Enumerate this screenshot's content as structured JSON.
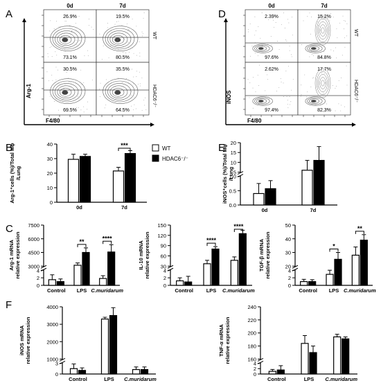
{
  "panels": {
    "A": "A",
    "B": "B",
    "C": "C",
    "D": "D",
    "E": "E",
    "F": "F"
  },
  "flow_A": {
    "col_labels": [
      "0d",
      "7d"
    ],
    "row_labels": [
      "WT",
      "HDAC6⁻/⁻"
    ],
    "y_axis": "Arg-1",
    "x_axis": "F4/80",
    "upper_values": [
      [
        "26.9%",
        "19.5%"
      ],
      [
        "30.5%",
        "35.5%"
      ]
    ],
    "lower_values": [
      [
        "73.1%",
        "80.5%"
      ],
      [
        "69.5%",
        "64.5%"
      ]
    ]
  },
  "flow_D": {
    "col_labels": [
      "0d",
      "7d"
    ],
    "row_labels": [
      "WT",
      "HDAC6⁻/⁻"
    ],
    "y_axis": "iNOS",
    "x_axis": "F4/80",
    "upper_values": [
      [
        "2.39%",
        "15.2%"
      ],
      [
        "2.62%",
        "17.7%"
      ]
    ],
    "lower_values": [
      [
        "97.6%",
        "84.8%"
      ],
      [
        "97.4%",
        "82.3%"
      ]
    ]
  },
  "legend": {
    "wt": "WT",
    "ko": "HDAC6⁻/⁻"
  },
  "colors": {
    "wt": "#ffffff",
    "ko": "#000000",
    "stroke": "#000000"
  },
  "chart_data": [
    {
      "id": "B",
      "type": "bar",
      "categories": [
        "0d",
        "7d"
      ],
      "series": [
        {
          "name": "WT",
          "values": [
            29.5,
            21.5
          ],
          "errors": [
            3.5,
            2.5
          ]
        },
        {
          "name": "HDAC6⁻/⁻",
          "values": [
            31.5,
            33.5
          ],
          "errors": [
            1.5,
            2.0
          ]
        }
      ],
      "ylabel": [
        "Arg-1⁺cells (%)/Total Mφ",
        "/Lung"
      ],
      "ylim": [
        0,
        40
      ],
      "yticks": [
        0,
        10,
        20,
        30,
        40
      ],
      "significance": [
        {
          "category": "7d",
          "label": "***"
        }
      ]
    },
    {
      "id": "E",
      "type": "bar",
      "categories": [
        "0d",
        "7d"
      ],
      "series": [
        {
          "name": "WT",
          "values": [
            0.4,
            6.0
          ],
          "errors": [
            0.35,
            5.0
          ]
        },
        {
          "name": "HDAC6⁻/⁻",
          "values": [
            0.57,
            11.0
          ],
          "errors": [
            0.28,
            7.0
          ]
        }
      ],
      "ylabel": [
        "iNOS⁺cells (%)/Total Mφ",
        "/Lung"
      ],
      "axis_break": true,
      "yticks_lower": [
        "0.0",
        "0.5",
        "1.0"
      ],
      "yticks_upper": [
        "5",
        "10",
        "15",
        "20"
      ]
    },
    {
      "id": "C1",
      "type": "bar",
      "categories": [
        "Control",
        "LPS",
        "C.muridarum"
      ],
      "series": [
        {
          "name": "WT",
          "values": [
            1.5,
            3100,
            1650
          ],
          "errors": [
            1.3,
            250,
            300
          ]
        },
        {
          "name": "HDAC6⁻/⁻",
          "values": [
            1.0,
            4500,
            4550
          ],
          "errors": [
            0.7,
            500,
            800
          ]
        }
      ],
      "ylabel": [
        "Arg-1 mRNA",
        "relative expression"
      ],
      "axis_break": true,
      "yticks_lower": [
        "0",
        "2",
        "4"
      ],
      "yticks_upper": [
        "3000",
        "4500",
        "6000",
        "7500"
      ],
      "significance": [
        {
          "category": "LPS",
          "label": "**"
        },
        {
          "category": "C.muridarum",
          "label": "****"
        }
      ]
    },
    {
      "id": "C2",
      "type": "bar",
      "categories": [
        "Control",
        "LPS",
        "C.muridarum"
      ],
      "series": [
        {
          "name": "WT",
          "values": [
            1.2,
            37,
            47
          ],
          "errors": [
            0.8,
            10,
            10
          ]
        },
        {
          "name": "HDAC6⁻/⁻",
          "values": [
            0.9,
            80,
            125
          ],
          "errors": [
            1.5,
            7,
            10
          ]
        }
      ],
      "ylabel": [
        "IL-10 mRNA",
        "relative expression"
      ],
      "axis_break": true,
      "yticks_lower": [
        "0",
        "2",
        "4"
      ],
      "yticks_upper": [
        "30",
        "60",
        "90",
        "120",
        "150"
      ],
      "significance": [
        {
          "category": "LPS",
          "label": "****"
        },
        {
          "category": "C.muridarum",
          "label": "****"
        }
      ]
    },
    {
      "id": "C3",
      "type": "bar",
      "categories": [
        "Control",
        "LPS",
        "C.muridarum"
      ],
      "series": [
        {
          "name": "WT",
          "values": [
            1.0,
            14,
            28
          ],
          "errors": [
            0.6,
            3,
            6
          ]
        },
        {
          "name": "HDAC6⁻/⁻",
          "values": [
            1.0,
            25,
            39
          ],
          "errors": [
            0.5,
            5,
            4
          ]
        }
      ],
      "ylabel": [
        "TGF-β mRNA",
        "relative expression"
      ],
      "axis_break": true,
      "yticks_lower": [
        "0",
        "2",
        "4"
      ],
      "yticks_upper": [
        "20",
        "30",
        "40",
        "50"
      ],
      "significance": [
        {
          "category": "LPS",
          "label": "*"
        },
        {
          "category": "C.muridarum",
          "label": "**"
        }
      ]
    },
    {
      "id": "F1",
      "type": "bar",
      "categories": [
        "Control",
        "LPS",
        "C.muridarum"
      ],
      "series": [
        {
          "name": "WT",
          "values": [
            1.5,
            3300,
            400
          ],
          "errors": [
            1.3,
            100,
            150
          ]
        },
        {
          "name": "HDAC6⁻/⁻",
          "values": [
            1.0,
            3500,
            400
          ],
          "errors": [
            0.7,
            450,
            150
          ]
        }
      ],
      "ylabel": [
        "iNOS mRNA",
        "relative expression"
      ],
      "axis_break": true,
      "yticks_lower": [
        "0",
        "3"
      ],
      "yticks_upper": [
        "1000",
        "2000",
        "3000",
        "4000"
      ]
    },
    {
      "id": "F2",
      "type": "bar",
      "categories": [
        "Control",
        "LPS",
        "C.muridarum"
      ],
      "series": [
        {
          "name": "WT",
          "values": [
            1.0,
            184,
            194
          ],
          "errors": [
            0.7,
            12,
            4
          ]
        },
        {
          "name": "HDAC6⁻/⁻",
          "values": [
            1.5,
            170,
            191
          ],
          "errors": [
            1.6,
            10,
            3
          ]
        }
      ],
      "ylabel": [
        "TNF-α mRNA",
        "relative expression"
      ],
      "axis_break": true,
      "yticks_lower": [
        "0",
        "2",
        "4"
      ],
      "yticks_upper": [
        "160",
        "180",
        "200",
        "220",
        "240"
      ]
    }
  ]
}
